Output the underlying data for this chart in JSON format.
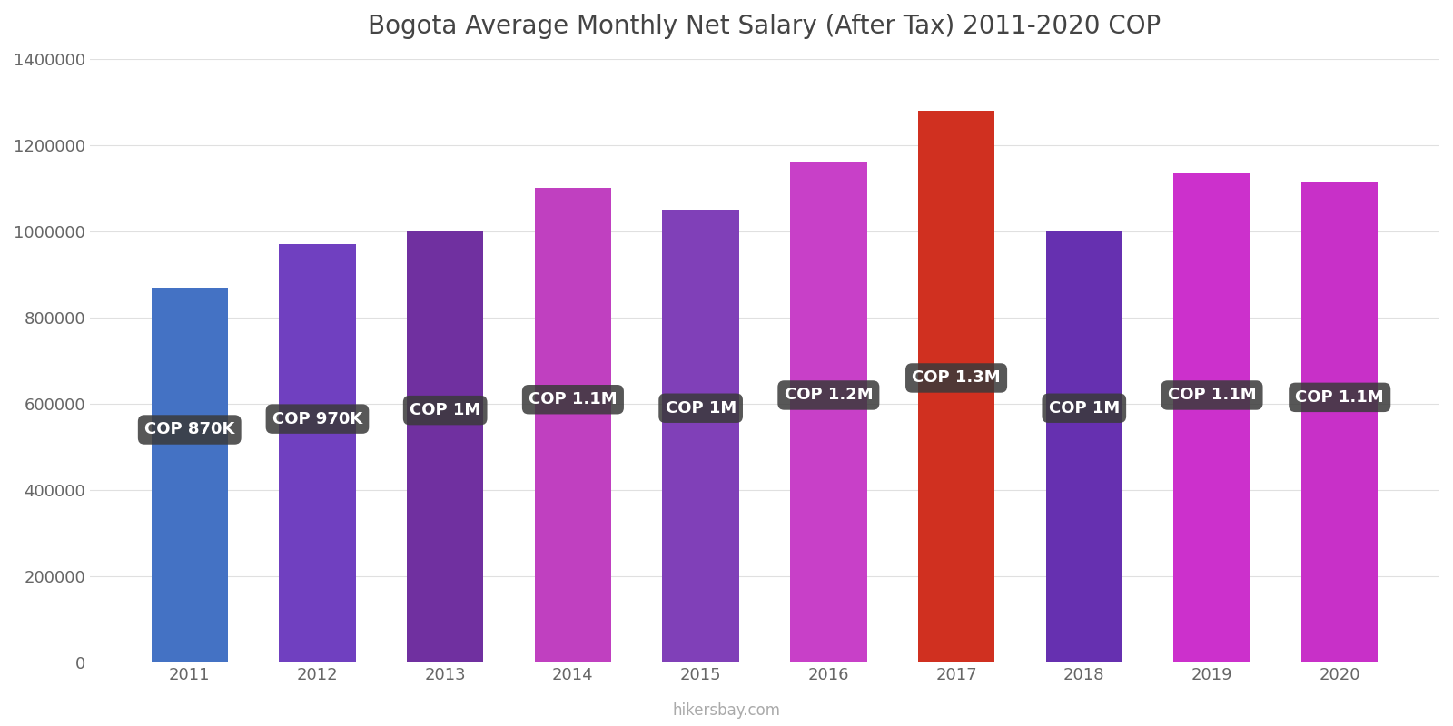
{
  "title": "Bogota Average Monthly Net Salary (After Tax) 2011-2020 COP",
  "years": [
    2011,
    2012,
    2013,
    2014,
    2015,
    2016,
    2017,
    2018,
    2019,
    2020
  ],
  "values": [
    870000,
    970000,
    1000000,
    1100000,
    1050000,
    1160000,
    1280000,
    1000000,
    1135000,
    1115000
  ],
  "bar_colors": [
    "#4472C4",
    "#7040C0",
    "#7030A0",
    "#C040C0",
    "#8040B8",
    "#C840C8",
    "#D03020",
    "#6630B0",
    "#CC30CC",
    "#C830C8"
  ],
  "labels": [
    "COP 870K",
    "COP 970K",
    "COP 1M",
    "COP 1.1M",
    "COP 1M",
    "COP 1.2M",
    "COP 1.3M",
    "COP 1M",
    "COP 1.1M",
    "COP 1.1M"
  ],
  "label_box_color": "#3a3a3a",
  "label_text_color": "#ffffff",
  "ylim": [
    0,
    1400000
  ],
  "yticks": [
    0,
    200000,
    400000,
    600000,
    800000,
    1000000,
    1200000,
    1400000
  ],
  "background_color": "#ffffff",
  "grid_color": "#e0e0e0",
  "title_fontsize": 20,
  "tick_fontsize": 13,
  "label_fontsize": 13,
  "watermark": "hikersbay.com",
  "label_y_positions": [
    540000,
    565000,
    585000,
    610000,
    590000,
    620000,
    660000,
    590000,
    620000,
    615000
  ]
}
